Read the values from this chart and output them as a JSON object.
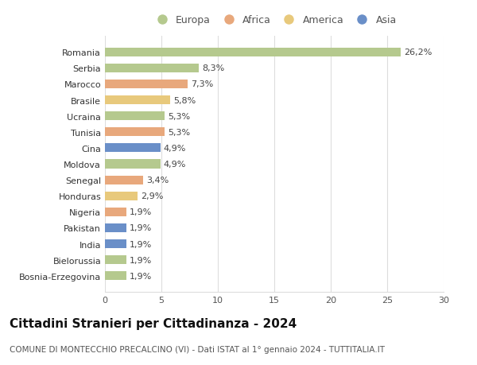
{
  "categories": [
    "Bosnia-Erzegovina",
    "Bielorussia",
    "India",
    "Pakistan",
    "Nigeria",
    "Honduras",
    "Senegal",
    "Moldova",
    "Cina",
    "Tunisia",
    "Ucraina",
    "Brasile",
    "Marocco",
    "Serbia",
    "Romania"
  ],
  "values": [
    1.9,
    1.9,
    1.9,
    1.9,
    1.9,
    2.9,
    3.4,
    4.9,
    4.9,
    5.3,
    5.3,
    5.8,
    7.3,
    8.3,
    26.2
  ],
  "colors": [
    "#b5c98e",
    "#b5c98e",
    "#6a8fc8",
    "#6a8fc8",
    "#e8a87c",
    "#e8c97c",
    "#e8a87c",
    "#b5c98e",
    "#6a8fc8",
    "#e8a87c",
    "#b5c98e",
    "#e8c97c",
    "#e8a87c",
    "#b5c98e",
    "#b5c98e"
  ],
  "labels": [
    "1,9%",
    "1,9%",
    "1,9%",
    "1,9%",
    "1,9%",
    "2,9%",
    "3,4%",
    "4,9%",
    "4,9%",
    "5,3%",
    "5,3%",
    "5,8%",
    "7,3%",
    "8,3%",
    "26,2%"
  ],
  "legend_labels": [
    "Europa",
    "Africa",
    "America",
    "Asia"
  ],
  "legend_colors": [
    "#b5c98e",
    "#e8a87c",
    "#e8c97c",
    "#6a8fc8"
  ],
  "title": "Cittadini Stranieri per Cittadinanza - 2024",
  "subtitle": "COMUNE DI MONTECCHIO PRECALCINO (VI) - Dati ISTAT al 1° gennaio 2024 - TUTTITALIA.IT",
  "xlim": [
    0,
    30
  ],
  "xticks": [
    0,
    5,
    10,
    15,
    20,
    25,
    30
  ],
  "bg_color": "#ffffff",
  "grid_color": "#dddddd",
  "bar_height": 0.55,
  "label_fontsize": 8,
  "tick_fontsize": 8,
  "title_fontsize": 11,
  "subtitle_fontsize": 7.5
}
